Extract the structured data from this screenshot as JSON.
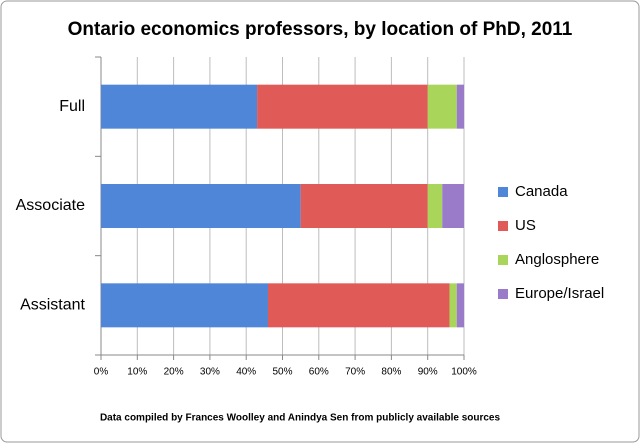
{
  "chart_data": {
    "type": "stacked-barh",
    "title": "Ontario economics professors, by location of PhD, 2011",
    "annotation": "Data compiled by Frances Woolley and Anindya Sen from publicly available sources",
    "categories": [
      "Full",
      "Associate",
      "Assistant"
    ],
    "series": [
      {
        "name": "Canada",
        "color": "#4f86d8",
        "values": [
          43,
          55,
          46
        ]
      },
      {
        "name": "US",
        "color": "#e05a58",
        "values": [
          47,
          35,
          50
        ]
      },
      {
        "name": "Anglosphere",
        "color": "#a9d65a",
        "values": [
          8,
          4,
          2
        ]
      },
      {
        "name": "Europe/Israel",
        "color": "#9a7bc9",
        "values": [
          2,
          6,
          2
        ]
      }
    ],
    "xlim": [
      0,
      100
    ],
    "xticks": [
      {
        "value": 0,
        "label": "0%"
      },
      {
        "value": 10,
        "label": "10%"
      },
      {
        "value": 20,
        "label": "20%"
      },
      {
        "value": 30,
        "label": "30%"
      },
      {
        "value": 40,
        "label": "40%"
      },
      {
        "value": 50,
        "label": "50%"
      },
      {
        "value": 60,
        "label": "60%"
      },
      {
        "value": 70,
        "label": "70%"
      },
      {
        "value": 80,
        "label": "80%"
      },
      {
        "value": 90,
        "label": "90%"
      },
      {
        "value": 100,
        "label": "100%"
      }
    ],
    "grid": true,
    "legend": "right"
  }
}
